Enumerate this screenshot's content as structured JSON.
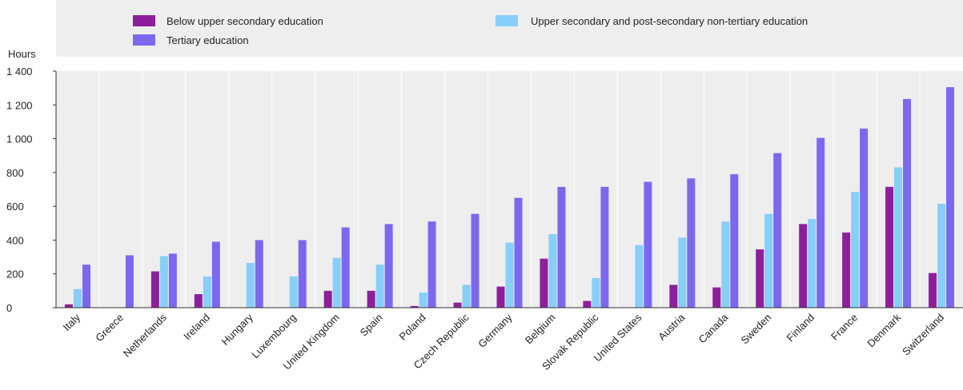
{
  "chart_data": {
    "type": "bar",
    "ylabel": "Hours",
    "ylim": [
      0,
      1400
    ],
    "yticks": [
      0,
      200,
      400,
      600,
      800,
      1000,
      1200,
      1400
    ],
    "ytick_labels": [
      "0",
      "200",
      "400",
      "600",
      "800",
      "1 000",
      "1 200",
      "1 400"
    ],
    "grid": "vertical separators between categories",
    "legend_position": "top",
    "categories": [
      "Italy",
      "Greece",
      "Netherlands",
      "Ireland",
      "Hungary",
      "Luxembourg",
      "United Kingdom",
      "Spain",
      "Poland",
      "Czech Republic",
      "Germany",
      "Belgium",
      "Slovak Republic",
      "United States",
      "Austria",
      "Canada",
      "Sweden",
      "Finland",
      "France",
      "Denmark",
      "Switzerland"
    ],
    "series": [
      {
        "name": "Below upper secondary education",
        "color": "#8e1f9c",
        "values": [
          20,
          null,
          215,
          80,
          null,
          null,
          100,
          100,
          10,
          30,
          125,
          290,
          40,
          null,
          135,
          120,
          345,
          495,
          445,
          715,
          205
        ]
      },
      {
        "name": "Upper secondary and post-secondary non-tertiary education",
        "color": "#87cef8",
        "values": [
          110,
          null,
          305,
          185,
          265,
          185,
          295,
          255,
          90,
          135,
          385,
          435,
          175,
          370,
          415,
          510,
          555,
          525,
          685,
          830,
          615
        ]
      },
      {
        "name": "Tertiary education",
        "color": "#7b68ee",
        "values": [
          255,
          310,
          320,
          390,
          400,
          400,
          475,
          495,
          510,
          555,
          650,
          715,
          715,
          745,
          765,
          790,
          915,
          1005,
          1060,
          1235,
          1305
        ]
      }
    ]
  },
  "colors": {
    "background": "#eeeeee",
    "separator": "#ffffff",
    "axis": "#333333"
  }
}
